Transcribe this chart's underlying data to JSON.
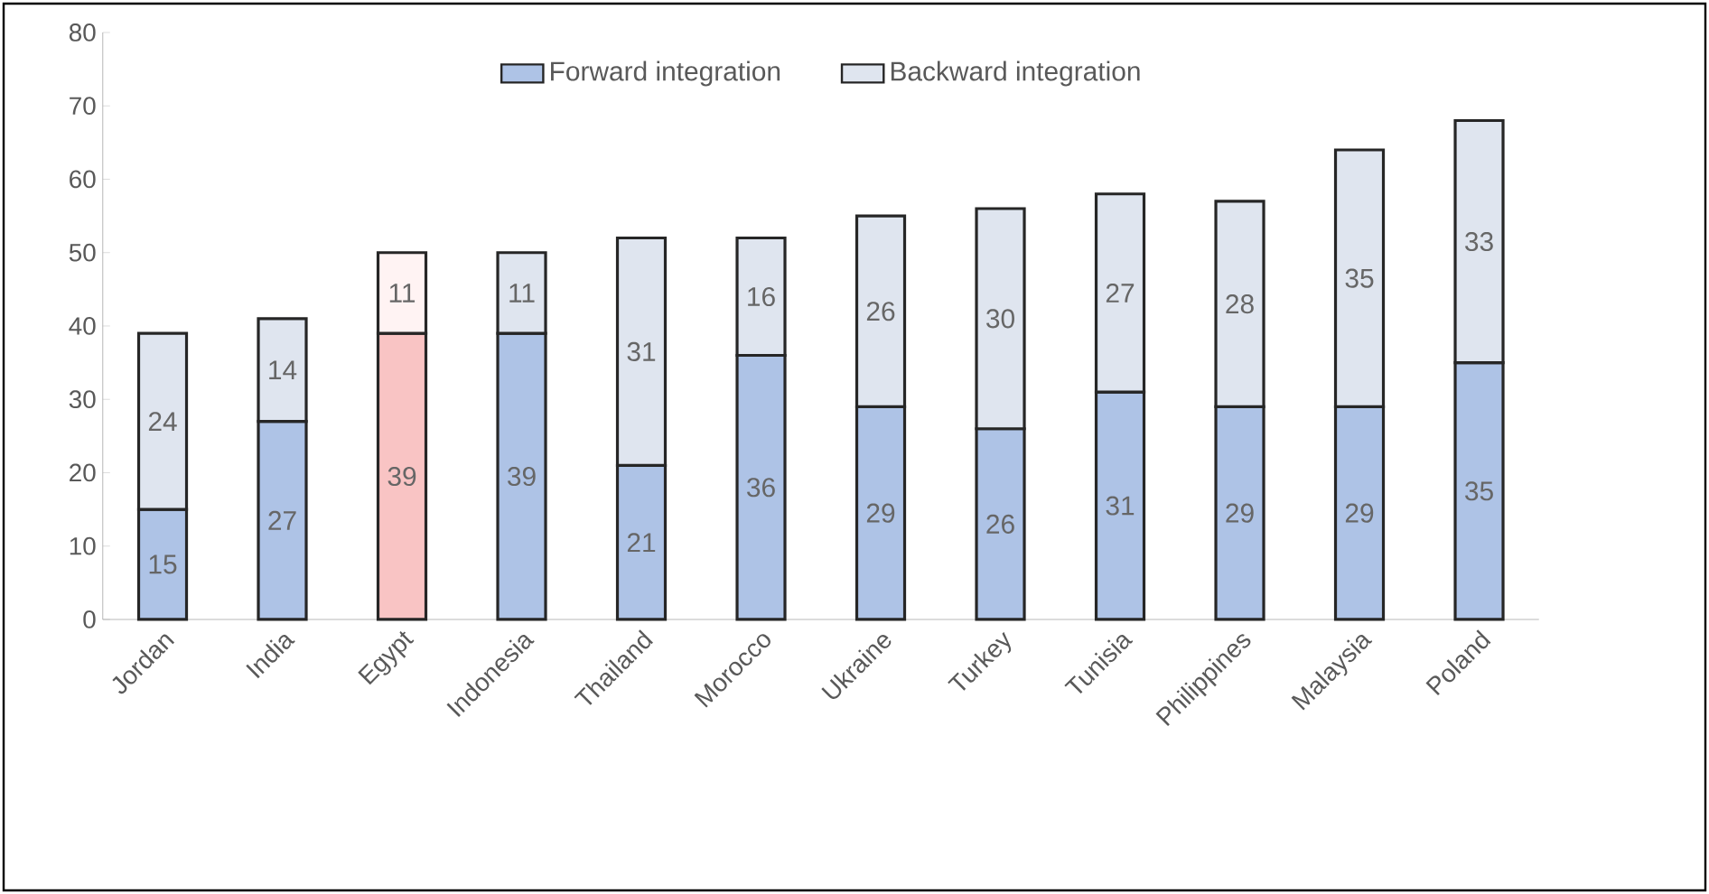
{
  "chart_data": {
    "type": "bar",
    "stacked": true,
    "data_labels": true,
    "legend": "top",
    "categories": [
      "Jordan",
      "India",
      "Egypt",
      "Indonesia",
      "Thailand",
      "Morocco",
      "Ukraine",
      "Turkey",
      "Tunisia",
      "Philippines",
      "Malaysia",
      "Poland"
    ],
    "series": [
      {
        "name": "Forward integration",
        "color": "#aec3e6",
        "colors": [
          "#aec3e6",
          "#aec3e6",
          "#f9c4c4",
          "#aec3e6",
          "#aec3e6",
          "#aec3e6",
          "#aec3e6",
          "#aec3e6",
          "#aec3e6",
          "#aec3e6",
          "#aec3e6",
          "#aec3e6"
        ],
        "values": [
          15,
          27,
          39,
          39,
          21,
          36,
          29,
          26,
          31,
          29,
          29,
          35
        ]
      },
      {
        "name": "Backward integration",
        "color": "#dfe5ef",
        "colors": [
          "#dfe5ef",
          "#dfe5ef",
          "#fff3f3",
          "#dfe5ef",
          "#dfe5ef",
          "#dfe5ef",
          "#dfe5ef",
          "#dfe5ef",
          "#dfe5ef",
          "#dfe5ef",
          "#dfe5ef",
          "#dfe5ef"
        ],
        "values": [
          24,
          14,
          11,
          11,
          31,
          16,
          26,
          30,
          27,
          28,
          35,
          33
        ]
      }
    ],
    "ylim": [
      0,
      80
    ],
    "yticks": [
      0,
      10,
      20,
      30,
      40,
      50,
      60,
      70,
      80
    ]
  }
}
